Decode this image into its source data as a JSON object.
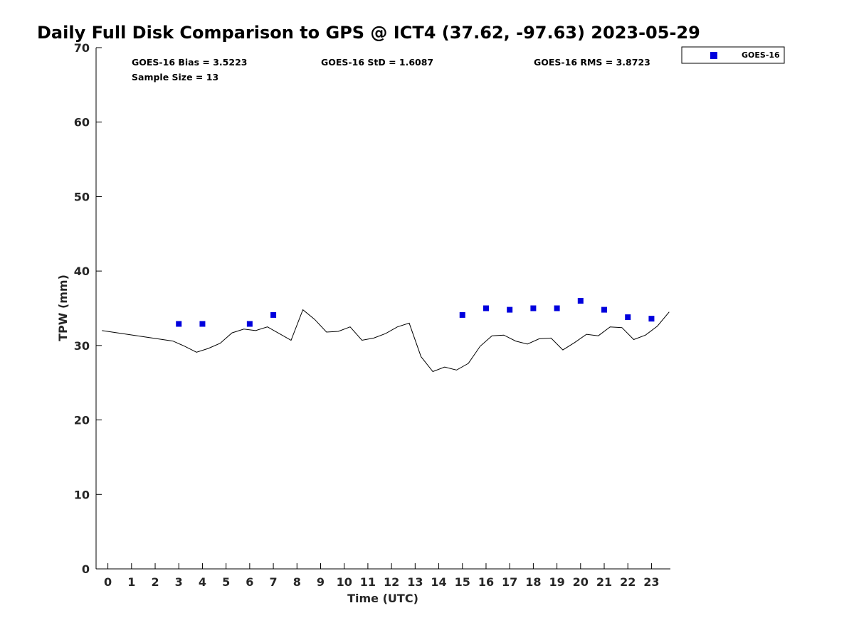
{
  "chart_data": {
    "type": "scatter",
    "title": "Daily Full Disk Comparison to GPS @ ICT4 (37.62, -97.63) 2023-05-29",
    "xlabel": "Time (UTC)",
    "ylabel": "TPW (mm)",
    "xlim": [
      -0.5,
      23.8
    ],
    "ylim": [
      0,
      70
    ],
    "x_ticks": [
      0,
      1,
      2,
      3,
      4,
      5,
      6,
      7,
      8,
      9,
      10,
      11,
      12,
      13,
      14,
      15,
      16,
      17,
      18,
      19,
      20,
      21,
      22,
      23
    ],
    "y_ticks": [
      0,
      10,
      20,
      30,
      40,
      50,
      60,
      70
    ],
    "grid": false,
    "legend_position": "top-right, outside plot",
    "stats": {
      "bias": "GOES-16 Bias = 3.5223",
      "std": "GOES-16 StD = 1.6087",
      "rms": "GOES-16 RMS = 3.8723",
      "sample": "Sample Size = 13"
    },
    "series": [
      {
        "name": "GOES-16",
        "kind": "scatter",
        "color": "#0000dd",
        "marker": "square",
        "x": [
          3,
          4,
          6,
          7,
          15,
          16,
          17,
          18,
          19,
          20,
          21,
          22,
          23
        ],
        "y": [
          32.9,
          32.9,
          32.9,
          34.1,
          34.1,
          35.0,
          34.8,
          35.0,
          35.0,
          36.0,
          34.8,
          33.8,
          33.6
        ]
      },
      {
        "kind": "line",
        "color": "#000000",
        "x": [
          -0.25,
          2.75,
          3.25,
          3.75,
          4.25,
          4.75,
          5.25,
          5.75,
          6.25,
          6.75,
          7.25,
          7.75,
          8.25,
          8.75,
          9.25,
          9.75,
          10.25,
          10.75,
          11.25,
          11.75,
          12.25,
          12.75,
          13.25,
          13.75,
          14.25,
          14.75,
          15.25,
          15.75,
          16.25,
          16.75,
          17.25,
          17.75,
          18.25,
          18.75,
          19.25,
          19.75,
          20.25,
          20.75,
          21.25,
          21.75,
          22.25,
          22.75,
          23.25,
          23.75
        ],
        "y": [
          32.0,
          30.6,
          29.9,
          29.1,
          29.6,
          30.3,
          31.7,
          32.2,
          32.0,
          32.5,
          31.6,
          30.7,
          34.8,
          33.5,
          31.8,
          31.9,
          32.5,
          30.7,
          31.0,
          31.6,
          32.5,
          33.0,
          28.5,
          26.5,
          27.1,
          26.7,
          27.6,
          29.9,
          31.3,
          31.4,
          30.6,
          30.2,
          30.9,
          31.0,
          29.4,
          30.4,
          31.5,
          31.3,
          32.5,
          32.4,
          30.8,
          31.4,
          32.6,
          34.5
        ]
      }
    ]
  }
}
